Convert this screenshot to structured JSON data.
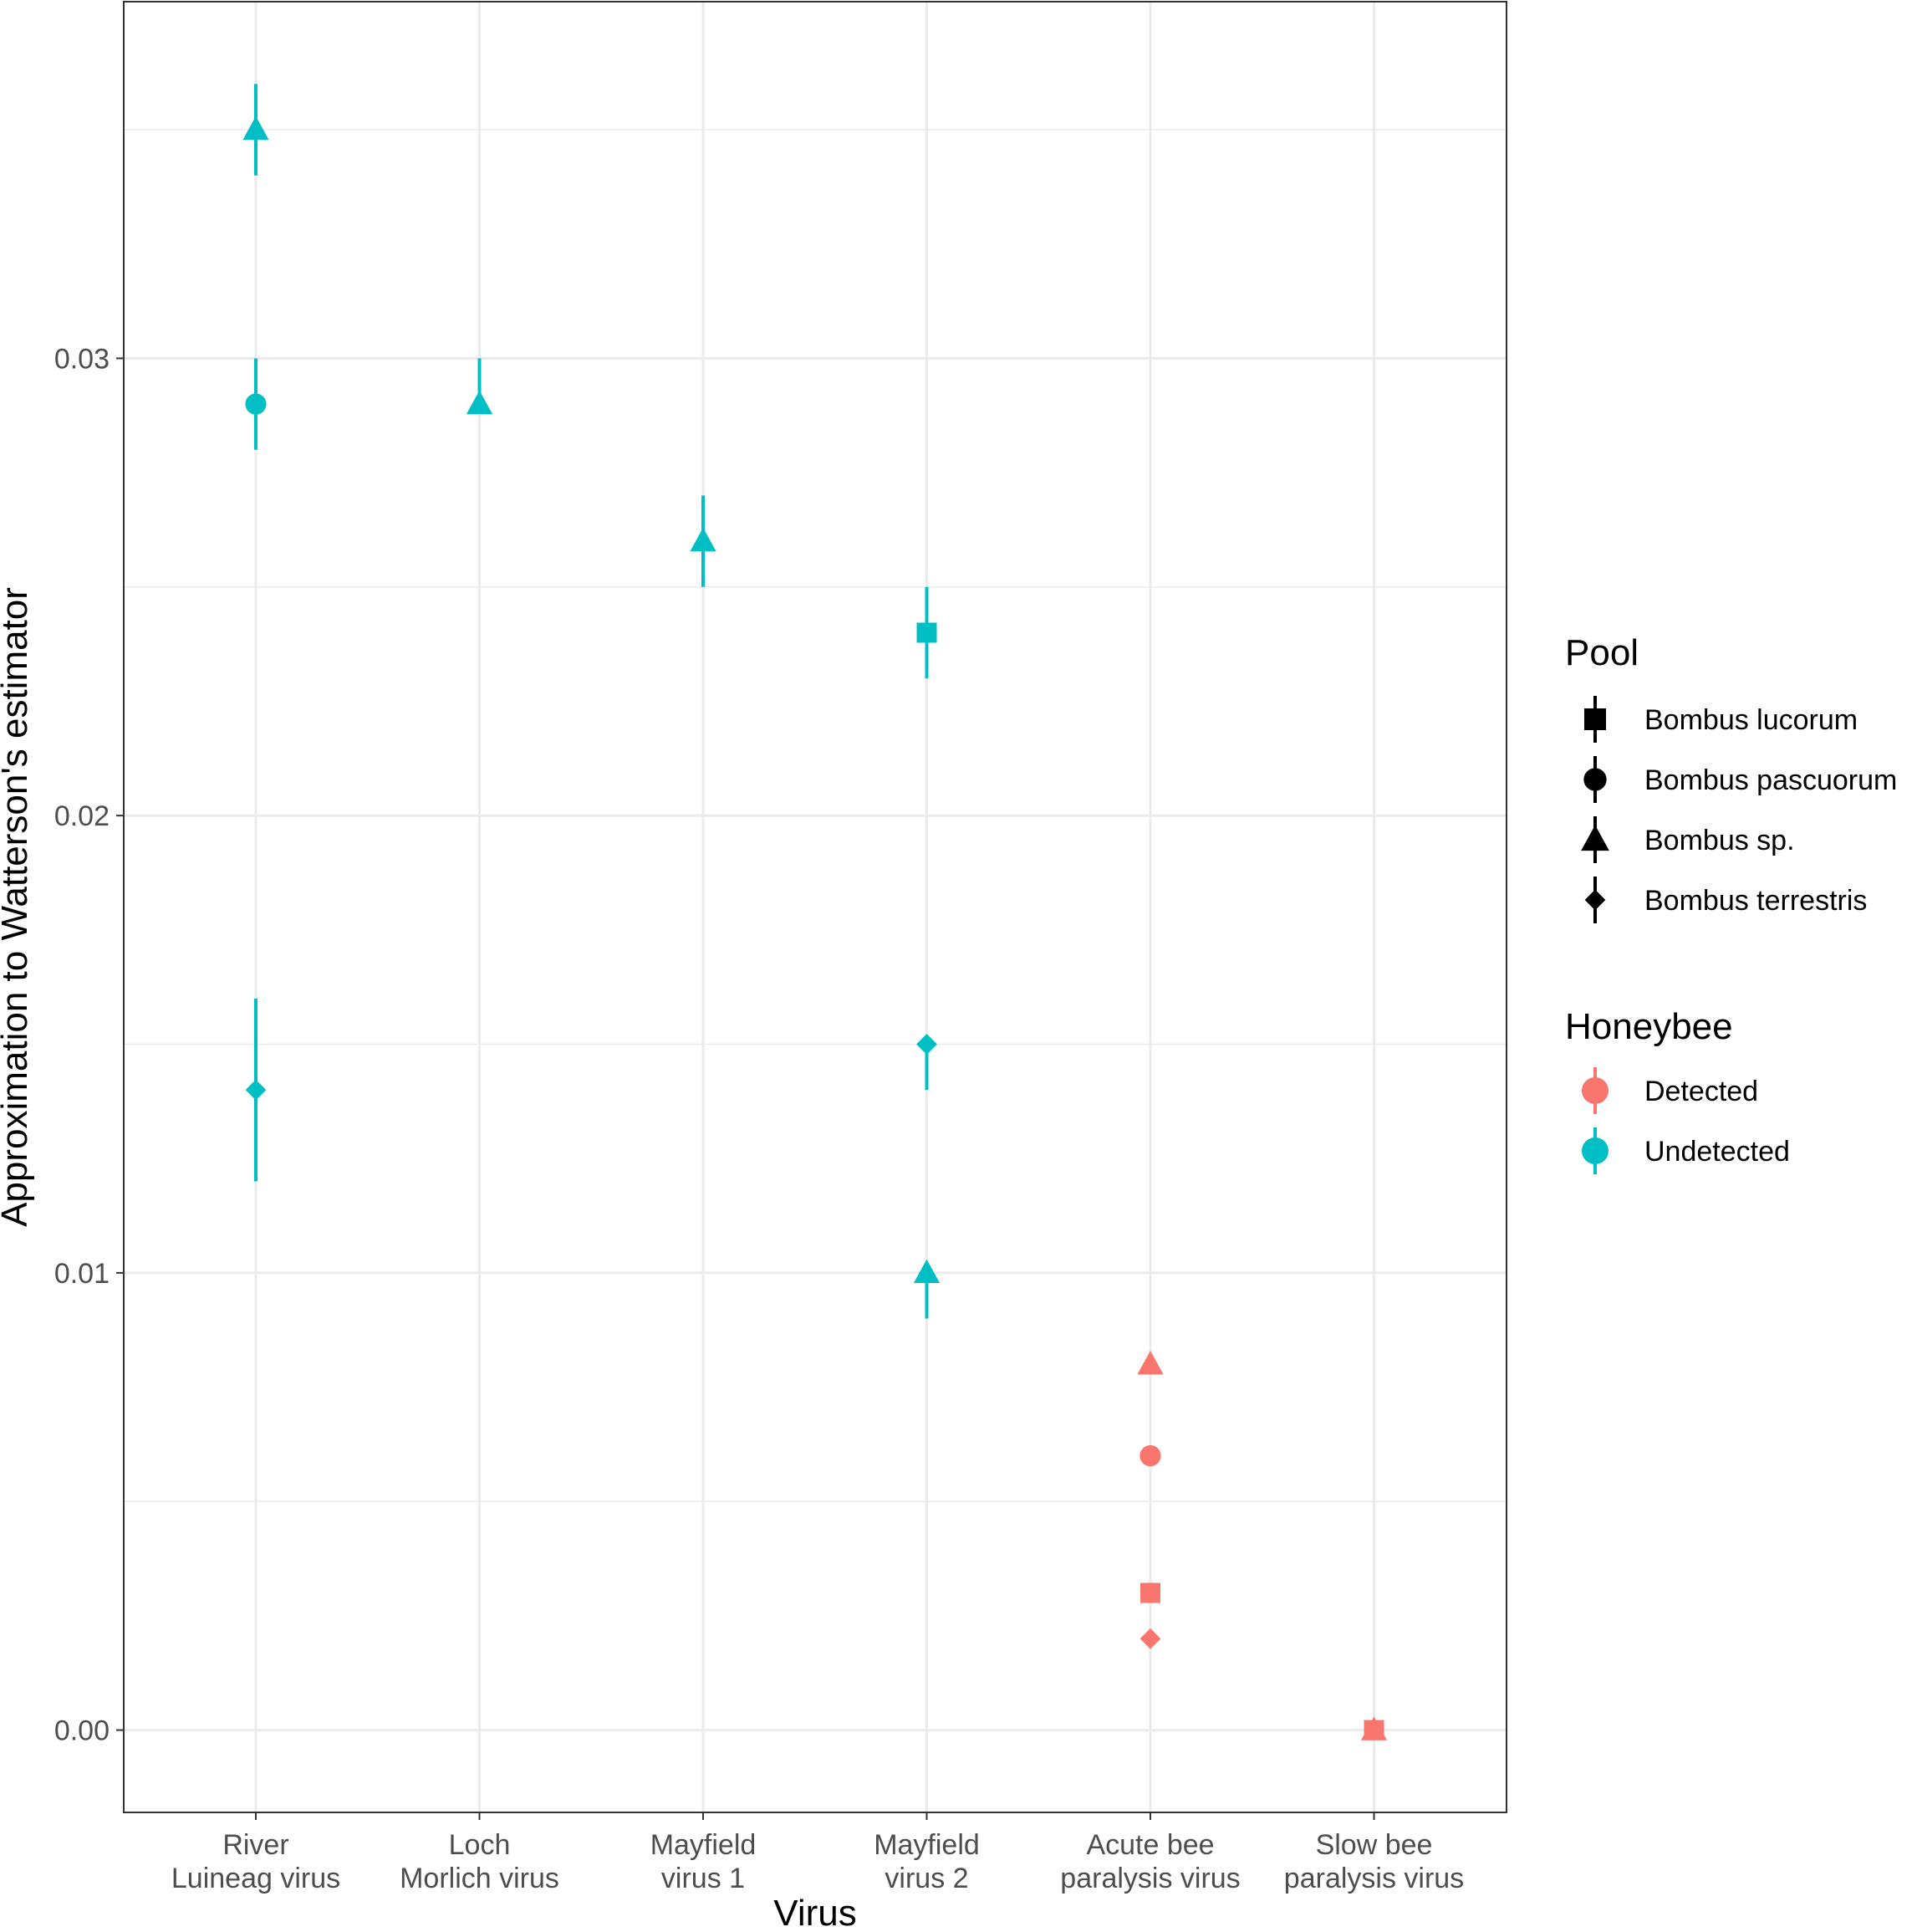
{
  "chart_data": {
    "type": "scatter",
    "xlabel": "Virus",
    "ylabel": "Approximation to Watterson's estimator",
    "ylim": [
      -0.0018,
      0.0378
    ],
    "y_ticks": [
      {
        "value": 0.0,
        "label": "0.00"
      },
      {
        "value": 0.01,
        "label": "0.01"
      },
      {
        "value": 0.02,
        "label": "0.02"
      },
      {
        "value": 0.03,
        "label": "0.03"
      }
    ],
    "y_minor_ticks": [
      0.005,
      0.015,
      0.025,
      0.035
    ],
    "grid": true,
    "categories": [
      {
        "line1": "River",
        "line2": "Luineag virus"
      },
      {
        "line1": "Loch",
        "line2": "Morlich virus"
      },
      {
        "line1": "Mayfield",
        "line2": "virus 1"
      },
      {
        "line1": "Mayfield",
        "line2": "virus 2"
      },
      {
        "line1": "Acute bee",
        "line2": "paralysis virus"
      },
      {
        "line1": "Slow bee",
        "line2": "paralysis virus"
      }
    ],
    "colors": {
      "Detected": "#F8766D",
      "Undetected": "#00BFC4"
    },
    "points": [
      {
        "cat": 0,
        "pool": "Bombus sp.",
        "honeybee": "Undetected",
        "y": 0.035,
        "lo": 0.034,
        "hi": 0.036
      },
      {
        "cat": 0,
        "pool": "Bombus pascuorum",
        "honeybee": "Undetected",
        "y": 0.029,
        "lo": 0.028,
        "hi": 0.03
      },
      {
        "cat": 0,
        "pool": "Bombus terrestris",
        "honeybee": "Undetected",
        "y": 0.014,
        "lo": 0.012,
        "hi": 0.016
      },
      {
        "cat": 1,
        "pool": "Bombus sp.",
        "honeybee": "Undetected",
        "y": 0.029,
        "lo": 0.029,
        "hi": 0.03
      },
      {
        "cat": 2,
        "pool": "Bombus sp.",
        "honeybee": "Undetected",
        "y": 0.026,
        "lo": 0.025,
        "hi": 0.027
      },
      {
        "cat": 3,
        "pool": "Bombus lucorum",
        "honeybee": "Undetected",
        "y": 0.024,
        "lo": 0.023,
        "hi": 0.025
      },
      {
        "cat": 3,
        "pool": "Bombus terrestris",
        "honeybee": "Undetected",
        "y": 0.015,
        "lo": 0.014,
        "hi": 0.015
      },
      {
        "cat": 3,
        "pool": "Bombus sp.",
        "honeybee": "Undetected",
        "y": 0.01,
        "lo": 0.009,
        "hi": 0.01
      },
      {
        "cat": 4,
        "pool": "Bombus sp.",
        "honeybee": "Detected",
        "y": 0.008,
        "lo": 0.008,
        "hi": 0.008
      },
      {
        "cat": 4,
        "pool": "Bombus pascuorum",
        "honeybee": "Detected",
        "y": 0.006,
        "lo": 0.006,
        "hi": 0.006
      },
      {
        "cat": 4,
        "pool": "Bombus lucorum",
        "honeybee": "Detected",
        "y": 0.003,
        "lo": 0.003,
        "hi": 0.003
      },
      {
        "cat": 4,
        "pool": "Bombus terrestris",
        "honeybee": "Detected",
        "y": 0.002,
        "lo": 0.002,
        "hi": 0.002
      },
      {
        "cat": 5,
        "pool": "Bombus lucorum",
        "honeybee": "Detected",
        "y": 0.0,
        "lo": 0.0,
        "hi": 0.0
      },
      {
        "cat": 5,
        "pool": "Bombus sp.",
        "honeybee": "Detected",
        "y": 0.0,
        "lo": 0.0,
        "hi": 0.0
      }
    ],
    "legend": {
      "pool": {
        "title": "Pool",
        "items": [
          {
            "label": "Bombus lucorum",
            "shape": "square"
          },
          {
            "label": "Bombus pascuorum",
            "shape": "circle"
          },
          {
            "label": "Bombus sp.",
            "shape": "triangle"
          },
          {
            "label": "Bombus terrestris",
            "shape": "diamond"
          }
        ]
      },
      "honeybee": {
        "title": "Honeybee",
        "items": [
          {
            "label": "Detected",
            "color": "#F8766D"
          },
          {
            "label": "Undetected",
            "color": "#00BFC4"
          }
        ]
      }
    }
  }
}
